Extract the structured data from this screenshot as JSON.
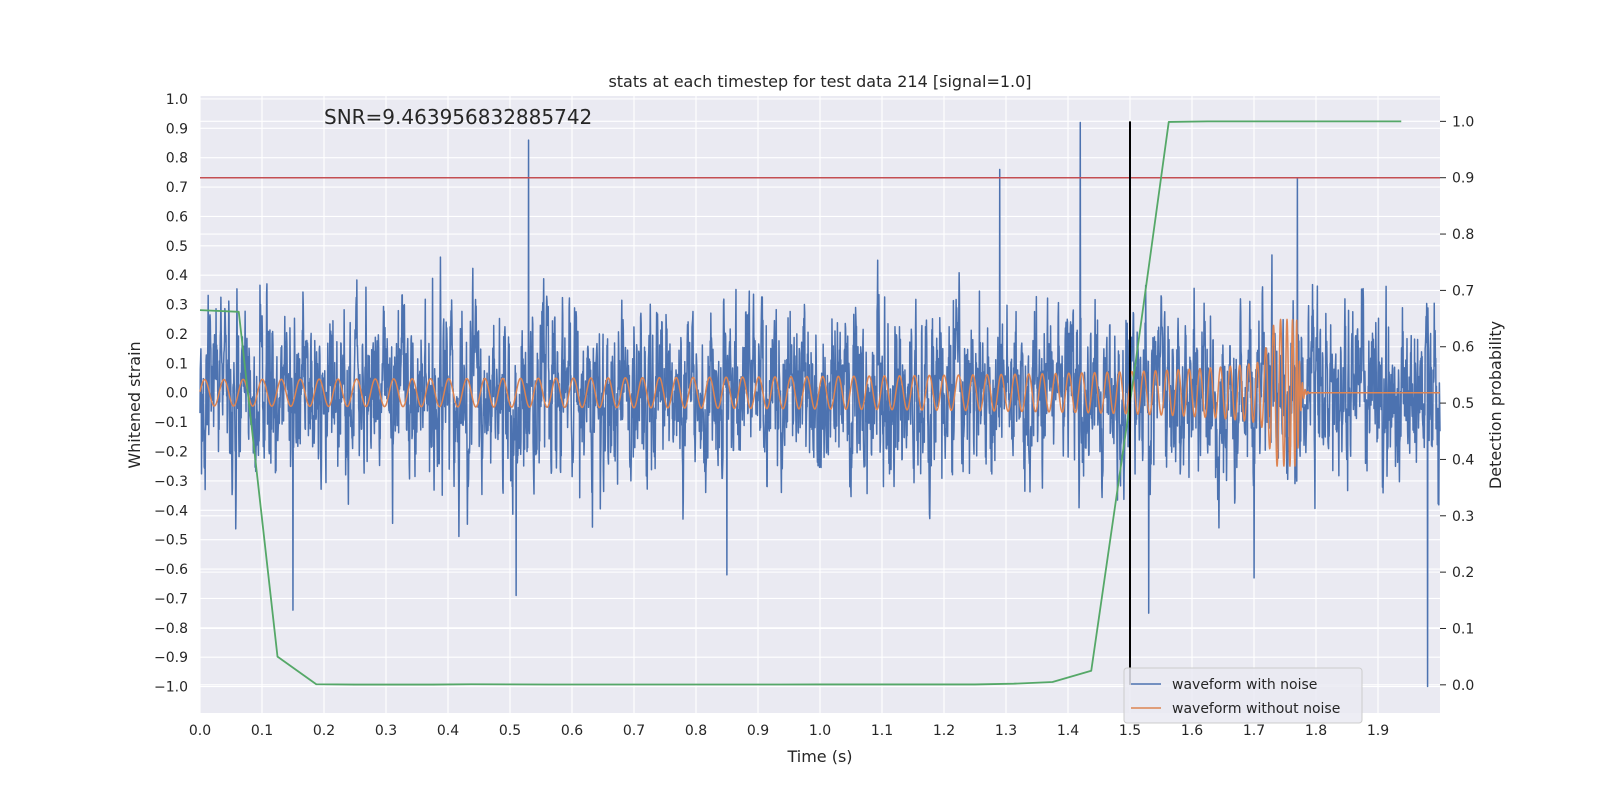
{
  "chart_data": {
    "type": "line",
    "title": "stats at each timestep for test data 214 [signal=1.0]",
    "xlabel": "Time (s)",
    "ylabel": "Whitened strain",
    "y2label": "Detection probability",
    "annotation": "SNR=9.463956832885742",
    "xlim": [
      0.0,
      2.0
    ],
    "ylim": [
      -1.09,
      1.01
    ],
    "y2lim": [
      -0.05,
      1.045
    ],
    "x_ticks": [
      "0.0",
      "0.1",
      "0.2",
      "0.3",
      "0.4",
      "0.5",
      "0.6",
      "0.7",
      "0.8",
      "0.9",
      "1.0",
      "1.1",
      "1.2",
      "1.3",
      "1.4",
      "1.5",
      "1.6",
      "1.7",
      "1.8",
      "1.9"
    ],
    "y_ticks": [
      "1.0",
      "0.9",
      "0.8",
      "0.7",
      "0.6",
      "0.5",
      "0.4",
      "0.3",
      "0.2",
      "0.1",
      "0.0",
      "−0.1",
      "−0.2",
      "−0.3",
      "−0.4",
      "−0.5",
      "−0.6",
      "−0.7",
      "−0.8",
      "−0.9",
      "−1.0"
    ],
    "y2_ticks": [
      "1.0",
      "0.9",
      "0.8",
      "0.7",
      "0.6",
      "0.5",
      "0.4",
      "0.3",
      "0.2",
      "0.1",
      "0.0"
    ],
    "grid": true,
    "legend_position": "bottom-right",
    "series": [
      {
        "name": "waveform with noise",
        "color": "#4c72b0",
        "kind": "noise-strain",
        "amplitude_range": [
          -0.6,
          0.6
        ],
        "spikes": [
          [
            0.53,
            0.86
          ],
          [
            1.42,
            0.92
          ],
          [
            1.29,
            0.76
          ],
          [
            1.77,
            0.73
          ],
          [
            1.98,
            -1.0
          ],
          [
            0.15,
            -0.74
          ],
          [
            0.51,
            -0.69
          ],
          [
            1.53,
            -0.75
          ],
          [
            1.7,
            -0.63
          ],
          [
            0.85,
            -0.62
          ]
        ]
      },
      {
        "name": "waveform without noise",
        "color": "#dd8452",
        "kind": "chirp",
        "envelope": {
          "start_amplitude": 0.045,
          "peak_amplitude": 0.25,
          "merger_time": 1.77,
          "ringdown_end": 1.79
        },
        "frequency": {
          "start_hz": 32,
          "merger_hz": 220
        }
      },
      {
        "name": "detection probability",
        "color": "#55a868",
        "axis": "right",
        "x": [
          0.0,
          0.0625,
          0.125,
          0.1875,
          0.25,
          0.3125,
          0.375,
          0.4375,
          0.5,
          0.5625,
          0.625,
          0.6875,
          0.75,
          0.8125,
          0.875,
          0.9375,
          1.0,
          1.0625,
          1.125,
          1.1875,
          1.25,
          1.3125,
          1.375,
          1.4375,
          1.5,
          1.5625,
          1.625,
          1.6875,
          1.75,
          1.8125,
          1.875,
          1.9375
        ],
        "y": [
          0.665,
          0.662,
          0.05,
          0.001,
          0.0005,
          0.0005,
          0.0005,
          0.001,
          0.0008,
          0.0006,
          0.0006,
          0.0006,
          0.0006,
          0.0006,
          0.0006,
          0.0006,
          0.0007,
          0.0007,
          0.0007,
          0.0007,
          0.0007,
          0.002,
          0.005,
          0.025,
          0.5,
          0.999,
          1.0,
          1.0,
          1.0,
          1.0,
          1.0,
          1.0
        ]
      }
    ],
    "threshold_line": {
      "axis": "right",
      "value": 0.9,
      "color": "#c44e52"
    },
    "vertical_marker": {
      "x": 1.5,
      "color": "#000000",
      "y2_range": [
        0.0,
        1.0
      ]
    }
  }
}
